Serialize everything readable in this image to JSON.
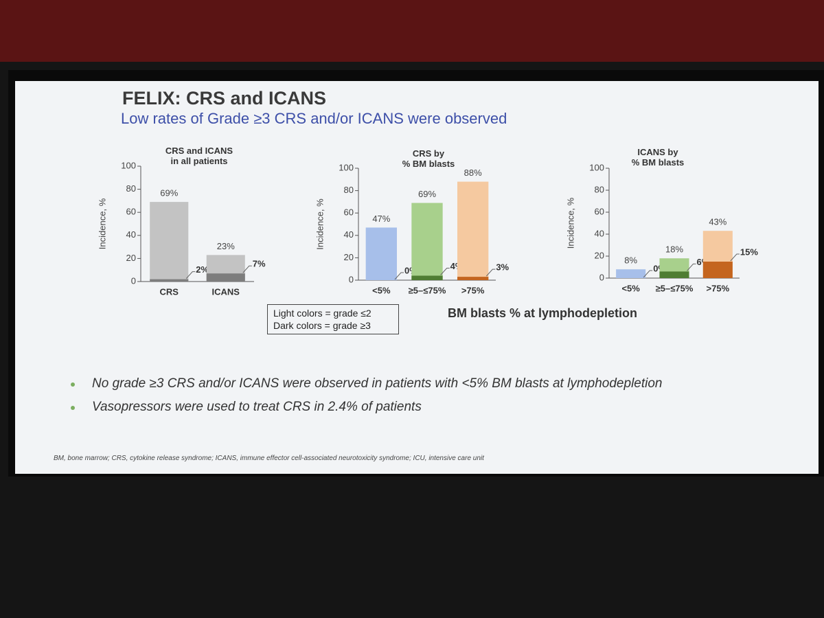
{
  "slide": {
    "title": "FELIX: CRS and ICANS",
    "subtitle": "Low rates of Grade ≥3 CRS and/or ICANS were observed",
    "xlabel": "BM blasts % at lymphodepletion",
    "bullets": [
      "No grade ≥3 CRS and/or ICANS were observed in patients with <5% BM blasts at lymphodepletion",
      "Vasopressors were used to treat CRS in 2.4% of patients"
    ],
    "footnote": "BM, bone marrow; CRS, cytokine release syndrome; ICANS, immune effector cell-associated neurotoxicity syndrome; ICU, intensive care unit"
  },
  "chart_data": [
    {
      "type": "bar",
      "title": "CRS and ICANS\nin all patients",
      "ylabel": "Incidence, %",
      "categories": [
        "CRS",
        "ICANS"
      ],
      "series": [
        {
          "name": "Light colors = grade ≤2",
          "color": "#c3c3c3",
          "values": [
            69,
            23
          ],
          "value_labels": [
            "69%",
            "23%"
          ]
        },
        {
          "name": "Dark colors = grade ≥3",
          "color": "#7d7d7d",
          "values": [
            2,
            7
          ],
          "value_labels": [
            "2%",
            "7%"
          ]
        }
      ],
      "ylim": [
        0,
        100
      ],
      "yticks": [
        0,
        20,
        40,
        60,
        80,
        100
      ]
    },
    {
      "type": "bar",
      "title": "CRS by\n% BM blasts",
      "ylabel": "Incidence, %",
      "categories": [
        "<5%",
        "≥5–≤75%",
        ">75%"
      ],
      "series": [
        {
          "colors": [
            "#a7bfea",
            "#a8d08c",
            "#f5c9a0"
          ],
          "values": [
            47,
            69,
            88
          ],
          "value_labels": [
            "47%",
            "69%",
            "88%"
          ]
        },
        {
          "colors": [
            "#4a6fbf",
            "#4f7d33",
            "#c4651f"
          ],
          "values": [
            0,
            4,
            3
          ],
          "value_labels": [
            "0%",
            "4%",
            "3%"
          ]
        }
      ],
      "ylim": [
        0,
        100
      ],
      "yticks": [
        0,
        20,
        40,
        60,
        80,
        100
      ]
    },
    {
      "type": "bar",
      "title": "ICANS by\n% BM blasts",
      "ylabel": "Incidence, %",
      "categories": [
        "<5%",
        "≥5–≤75%",
        ">75%"
      ],
      "series": [
        {
          "colors": [
            "#a7bfea",
            "#a8d08c",
            "#f5c9a0"
          ],
          "values": [
            8,
            18,
            43
          ],
          "value_labels": [
            "8%",
            "18%",
            "43%"
          ]
        },
        {
          "colors": [
            "#4a6fbf",
            "#4f7d33",
            "#c4651f"
          ],
          "values": [
            0,
            6,
            15
          ],
          "value_labels": [
            "0%",
            "6%",
            "15%"
          ]
        }
      ],
      "ylim": [
        0,
        100
      ],
      "yticks": [
        0,
        20,
        40,
        60,
        80,
        100
      ]
    }
  ]
}
